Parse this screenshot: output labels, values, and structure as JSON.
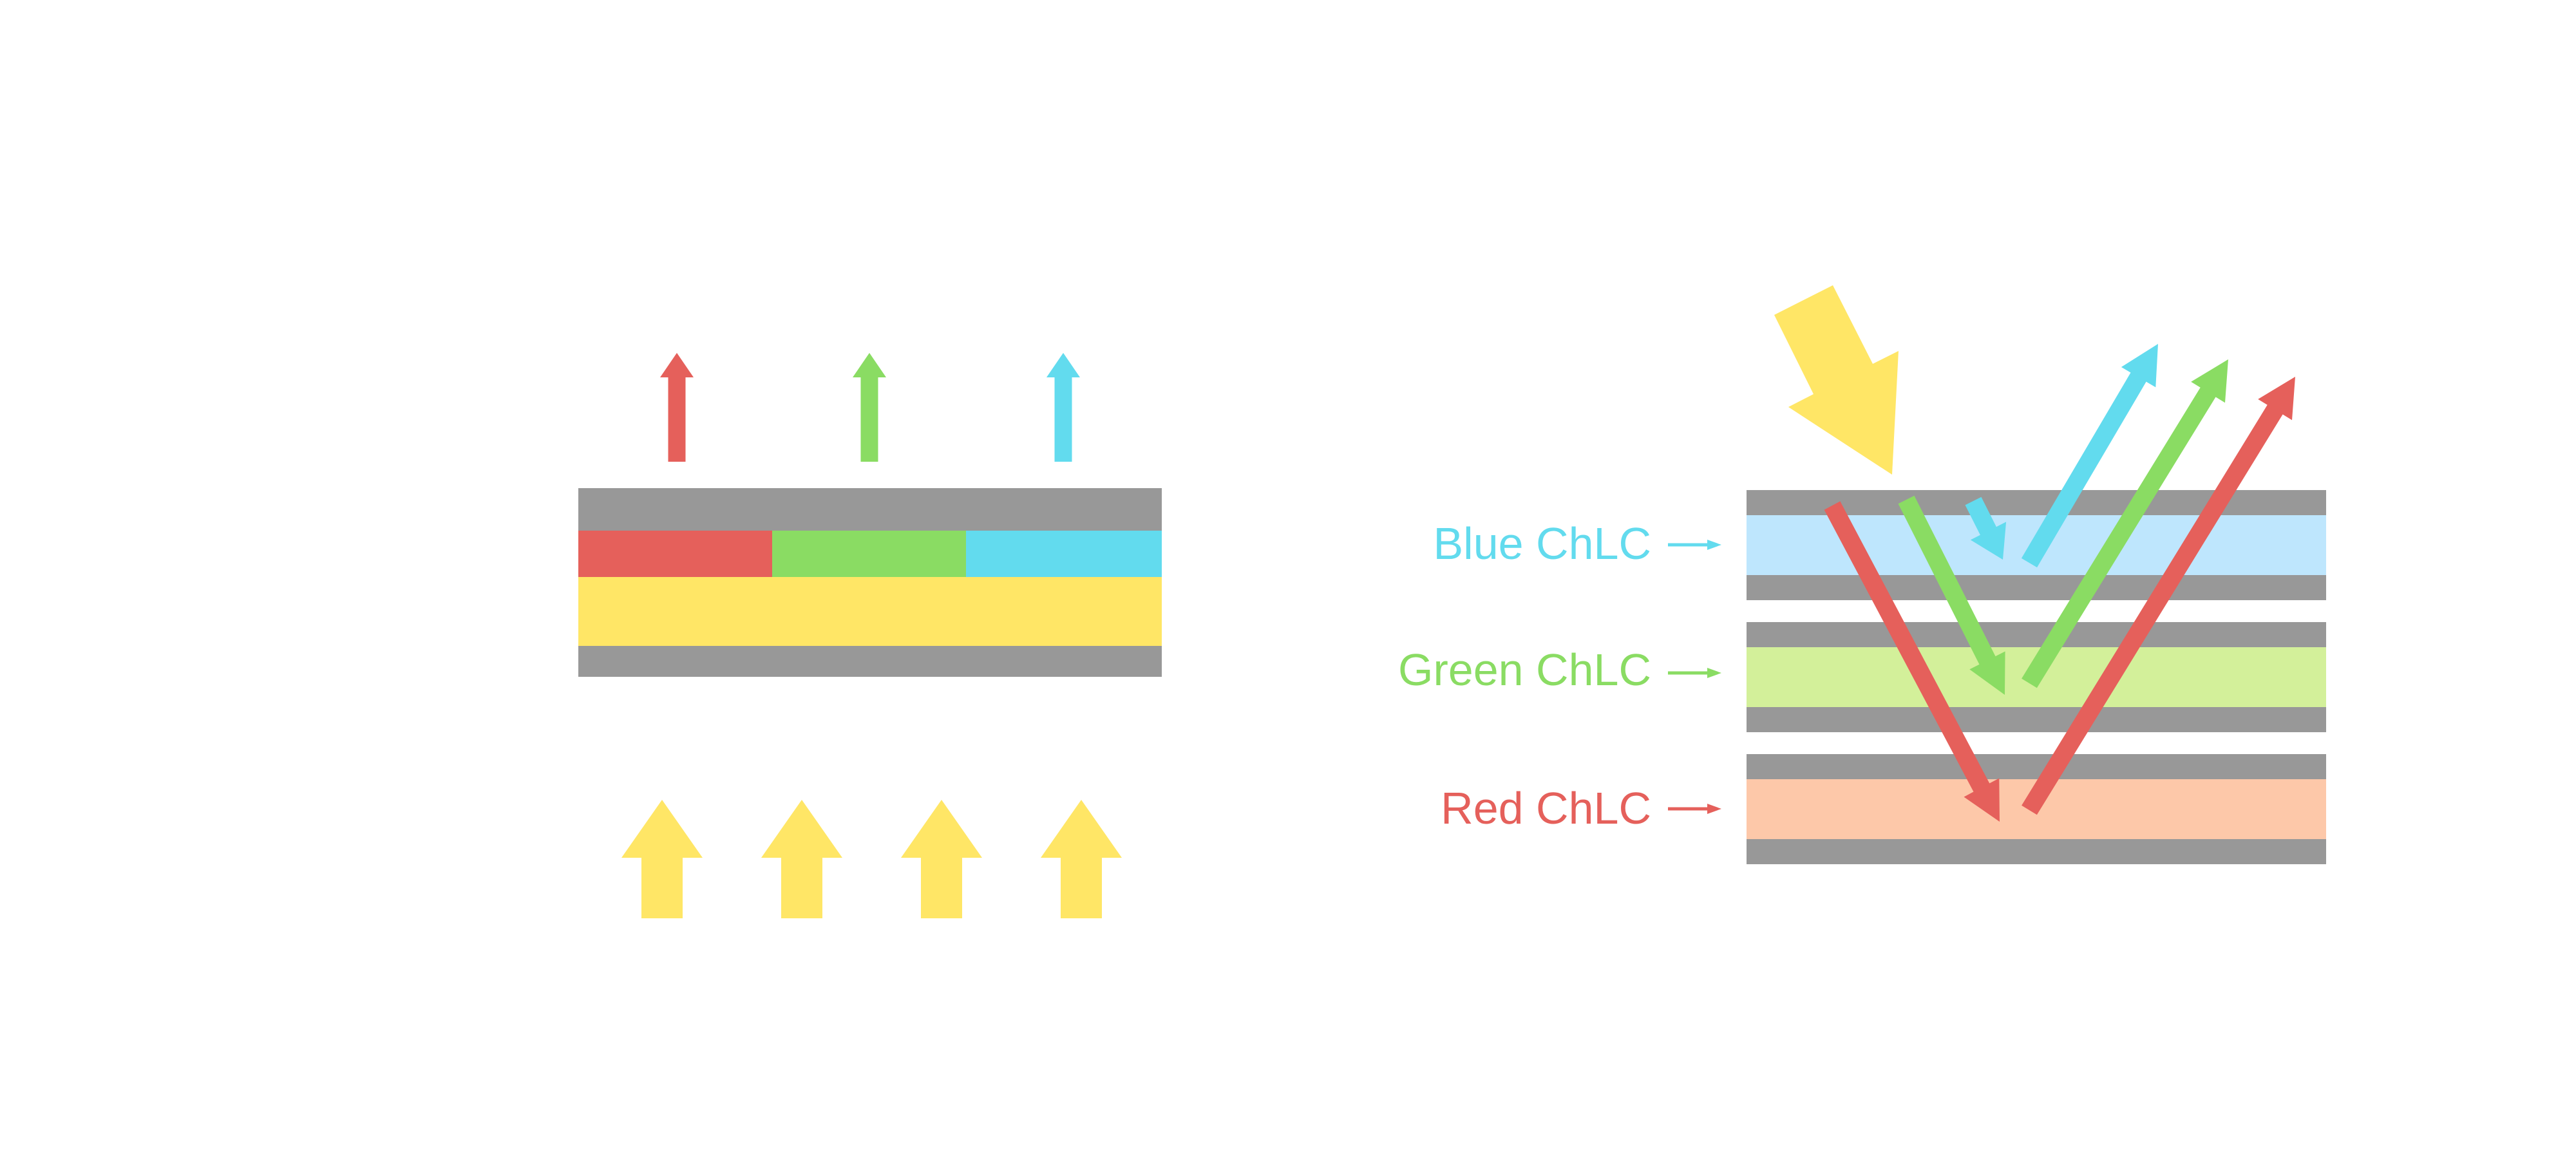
{
  "colors": {
    "gray": "#989898",
    "yellow": "#ffe666",
    "red": "#e5605b",
    "green": "#8adc63",
    "cyan": "#62dbee",
    "blue_layer": "#bee6fd",
    "green_layer": "#d3f09a",
    "red_layer": "#fdc8a9"
  },
  "labels": {
    "blue": "Blue ChLC",
    "green": "Green ChLC",
    "red": "Red ChLC"
  }
}
